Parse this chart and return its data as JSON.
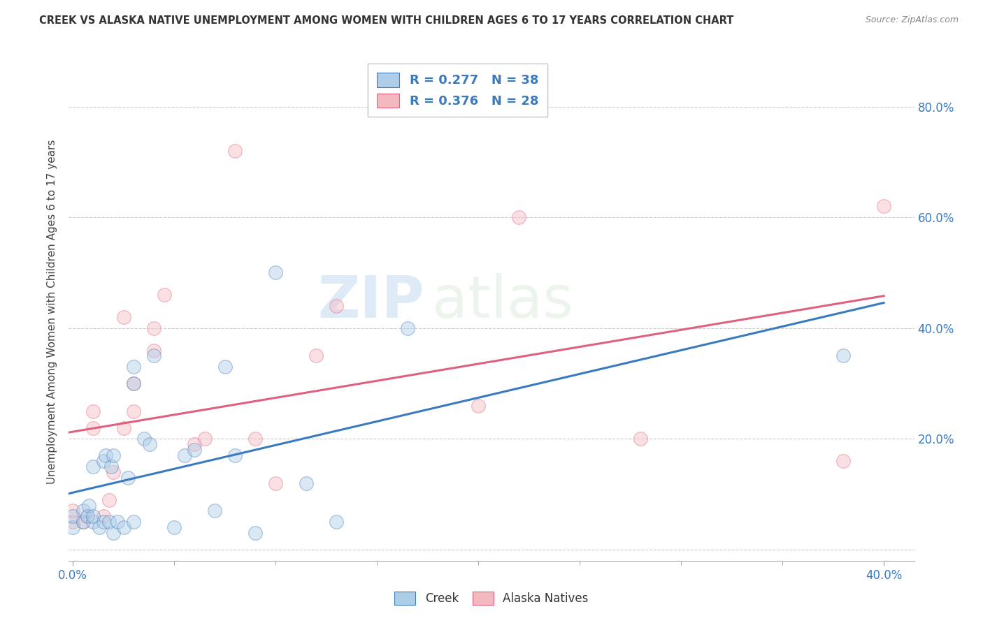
{
  "title": "CREEK VS ALASKA NATIVE UNEMPLOYMENT AMONG WOMEN WITH CHILDREN AGES 6 TO 17 YEARS CORRELATION CHART",
  "source": "Source: ZipAtlas.com",
  "ylabel": "Unemployment Among Women with Children Ages 6 to 17 years",
  "xlim": [
    -0.002,
    0.415
  ],
  "ylim": [
    -0.02,
    0.88
  ],
  "creek_R": 0.277,
  "creek_N": 38,
  "alaska_R": 0.376,
  "alaska_N": 28,
  "creek_color": "#aecde8",
  "alaska_color": "#f4b8c1",
  "creek_line_color": "#3a7abf",
  "alaska_line_color": "#e06080",
  "title_color": "#333333",
  "grid_color": "#cccccc",
  "watermark_zip": "ZIP",
  "watermark_atlas": "atlas",
  "creek_x": [
    0.0,
    0.0,
    0.005,
    0.005,
    0.007,
    0.008,
    0.01,
    0.01,
    0.01,
    0.013,
    0.015,
    0.015,
    0.016,
    0.018,
    0.019,
    0.02,
    0.02,
    0.022,
    0.025,
    0.027,
    0.03,
    0.03,
    0.03,
    0.035,
    0.038,
    0.04,
    0.05,
    0.055,
    0.06,
    0.07,
    0.075,
    0.08,
    0.09,
    0.1,
    0.115,
    0.13,
    0.165,
    0.38
  ],
  "creek_y": [
    0.04,
    0.06,
    0.05,
    0.07,
    0.06,
    0.08,
    0.05,
    0.06,
    0.15,
    0.04,
    0.05,
    0.16,
    0.17,
    0.05,
    0.15,
    0.03,
    0.17,
    0.05,
    0.04,
    0.13,
    0.05,
    0.3,
    0.33,
    0.2,
    0.19,
    0.35,
    0.04,
    0.17,
    0.18,
    0.07,
    0.33,
    0.17,
    0.03,
    0.5,
    0.12,
    0.05,
    0.4,
    0.35
  ],
  "alaska_x": [
    0.0,
    0.0,
    0.005,
    0.007,
    0.01,
    0.01,
    0.015,
    0.018,
    0.02,
    0.025,
    0.025,
    0.03,
    0.03,
    0.04,
    0.04,
    0.045,
    0.06,
    0.065,
    0.08,
    0.09,
    0.1,
    0.12,
    0.13,
    0.2,
    0.22,
    0.28,
    0.38,
    0.4
  ],
  "alaska_y": [
    0.05,
    0.07,
    0.05,
    0.06,
    0.22,
    0.25,
    0.06,
    0.09,
    0.14,
    0.22,
    0.42,
    0.25,
    0.3,
    0.4,
    0.36,
    0.46,
    0.19,
    0.2,
    0.72,
    0.2,
    0.12,
    0.35,
    0.44,
    0.26,
    0.6,
    0.2,
    0.16,
    0.62
  ],
  "marker_size": 200,
  "alpha": 0.45,
  "xlabel_show": [
    "0.0%",
    "40.0%"
  ],
  "ylabel_ticks": [
    0.2,
    0.4,
    0.6,
    0.8
  ],
  "ylabel_tick_labels": [
    "20.0%",
    "40.0%",
    "60.0%",
    "80.0%"
  ],
  "grid_yticks": [
    0.0,
    0.2,
    0.4,
    0.6,
    0.8
  ]
}
